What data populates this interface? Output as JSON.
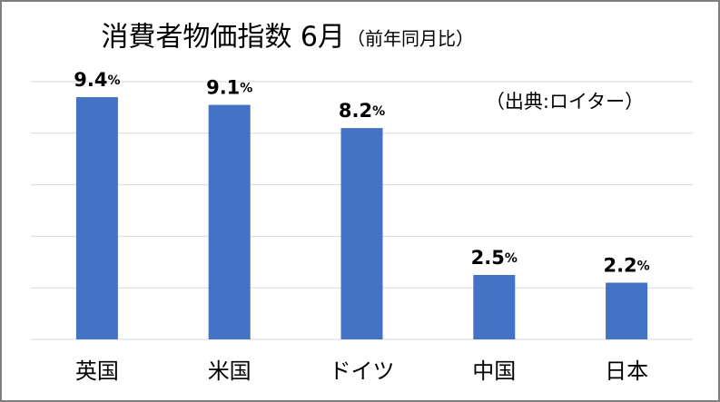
{
  "chart_data": {
    "type": "bar",
    "title": "消費者物価指数 6月",
    "subtitle": "（前年同月比）",
    "annotation": "（出典:ロイター）",
    "categories": [
      "英国",
      "米国",
      "ドイツ",
      "中国",
      "日本"
    ],
    "values": [
      9.4,
      9.1,
      8.2,
      2.5,
      2.2
    ],
    "value_labels": [
      "9.4%",
      "9.1%",
      "8.2%",
      "2.5%",
      "2.2%"
    ],
    "color": "#4472c4",
    "ylim": [
      0,
      10
    ],
    "yticks": [
      0,
      2,
      4,
      6,
      8,
      10
    ],
    "grid": true
  }
}
